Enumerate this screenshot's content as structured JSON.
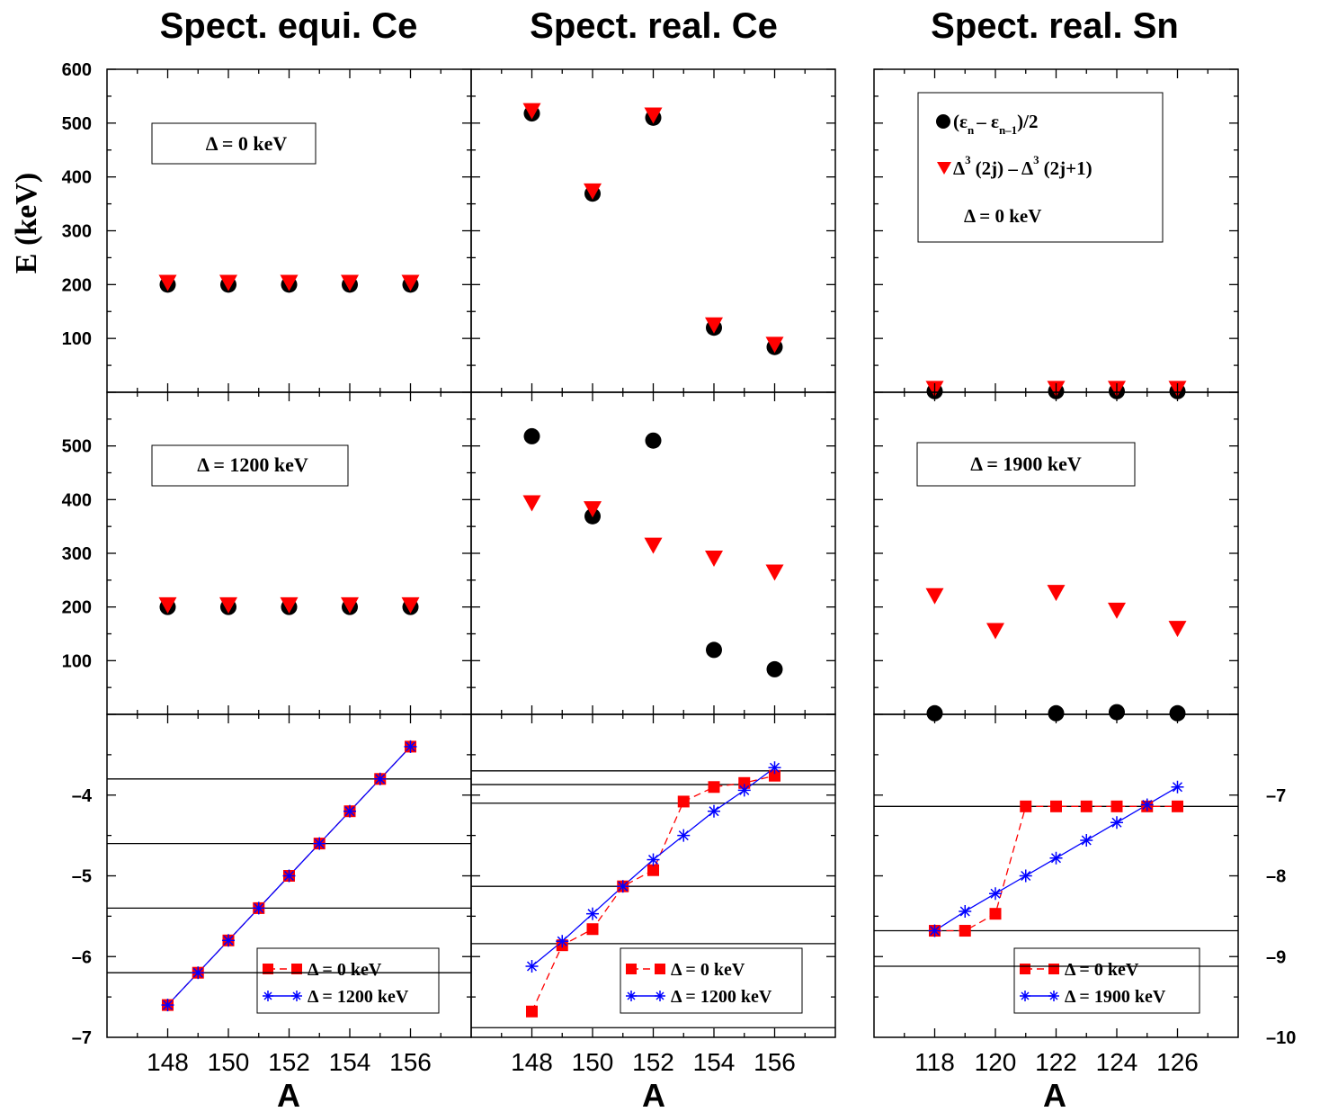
{
  "figure": {
    "ylabel": "E  (keV)",
    "columns": [
      {
        "title": "Spect. equi. Ce",
        "xlabel": "A",
        "xticks": [
          "148",
          "150",
          "152",
          "154",
          "156"
        ]
      },
      {
        "title": "Spect. real. Ce",
        "xlabel": "A",
        "xticks": [
          "148",
          "150",
          "152",
          "154",
          "156"
        ]
      },
      {
        "title": "Spect. real. Sn",
        "xlabel": "A",
        "xticks": [
          "118",
          "120",
          "122",
          "124",
          "126"
        ]
      }
    ],
    "top_yticks": [
      "600",
      "500",
      "400",
      "300",
      "200",
      "100"
    ],
    "mid_yticks": [
      "500",
      "400",
      "300",
      "200",
      "100"
    ],
    "bottom_left_yticks": [
      "-4",
      "-5",
      "-6",
      "-7"
    ],
    "bottom_right_yticks": [
      "-7",
      "-8",
      "-9",
      "-10"
    ],
    "labels": {
      "delta0": "Δ = 0 keV",
      "delta1200": "Δ = 1200 keV",
      "delta1900": "Δ = 1900 keV",
      "leg_diff": "(ε",
      "leg_diff_sub_n": "n",
      "leg_diff_mid": "– ε",
      "leg_diff_sub_n1": "n–1",
      "leg_diff_end": ")/2",
      "leg_delta3_a": "Δ",
      "leg_delta3_sup": "3",
      "leg_delta3_b": "(2j) – Δ",
      "leg_delta3_sup2": "3",
      "leg_delta3_c": "(2j+1)"
    },
    "colors": {
      "red": "#ff0000",
      "blue": "#0000ff",
      "black": "#000000"
    }
  },
  "chart_data": [
    {
      "type": "scatter",
      "panel": "top-left",
      "xlim": [
        146,
        158
      ],
      "ylim": [
        0,
        600
      ],
      "series": [
        {
          "name": "(εn – εn–1)/2",
          "marker": "circle",
          "x": [
            148,
            150,
            152,
            154,
            156
          ],
          "y": [
            200,
            200,
            200,
            200,
            200
          ]
        },
        {
          "name": "Δ3(2j) – Δ3(2j+1)",
          "marker": "triangle",
          "x": [
            148,
            150,
            152,
            154,
            156
          ],
          "y": [
            203,
            203,
            203,
            203,
            203
          ]
        }
      ],
      "annotation": "Δ = 0 keV"
    },
    {
      "type": "scatter",
      "panel": "top-middle",
      "xlim": [
        146,
        158
      ],
      "ylim": [
        0,
        600
      ],
      "series": [
        {
          "name": "(εn – εn–1)/2",
          "marker": "circle",
          "x": [
            148,
            150,
            152,
            154,
            156
          ],
          "y": [
            518,
            369,
            510,
            120,
            84
          ]
        },
        {
          "name": "Δ3(2j) – Δ3(2j+1)",
          "marker": "triangle",
          "x": [
            148,
            150,
            152,
            154,
            156
          ],
          "y": [
            522,
            373,
            514,
            124,
            88
          ]
        }
      ]
    },
    {
      "type": "scatter",
      "panel": "top-right",
      "xlim": [
        116,
        128
      ],
      "ylim": [
        0,
        600
      ],
      "series": [
        {
          "name": "(εn – εn–1)/2",
          "marker": "circle",
          "x": [
            118,
            122,
            124,
            126
          ],
          "y": [
            2,
            2,
            2,
            2
          ]
        },
        {
          "name": "Δ3(2j) – Δ3(2j+1)",
          "marker": "triangle",
          "x": [
            118,
            122,
            124,
            126
          ],
          "y": [
            6,
            6,
            6,
            6
          ]
        }
      ],
      "annotation": "Δ = 0 keV"
    },
    {
      "type": "scatter",
      "panel": "middle-left",
      "xlim": [
        146,
        158
      ],
      "ylim": [
        0,
        600
      ],
      "series": [
        {
          "name": "(εn – εn–1)/2",
          "marker": "circle",
          "x": [
            148,
            150,
            152,
            154,
            156
          ],
          "y": [
            200,
            200,
            200,
            200,
            200
          ]
        },
        {
          "name": "Δ3(2j) – Δ3(2j+1)",
          "marker": "triangle",
          "x": [
            148,
            150,
            152,
            154,
            156
          ],
          "y": [
            203,
            203,
            203,
            203,
            203
          ]
        }
      ],
      "annotation": "Δ = 1200 keV"
    },
    {
      "type": "scatter",
      "panel": "middle-middle",
      "xlim": [
        146,
        158
      ],
      "ylim": [
        0,
        600
      ],
      "series": [
        {
          "name": "(εn – εn–1)/2",
          "marker": "circle",
          "x": [
            148,
            150,
            152,
            154,
            156
          ],
          "y": [
            518,
            369,
            510,
            120,
            84
          ]
        },
        {
          "name": "Δ3(2j) – Δ3(2j+1)",
          "marker": "triangle",
          "x": [
            148,
            150,
            152,
            154,
            156
          ],
          "y": [
            393,
            382,
            314,
            290,
            264
          ]
        }
      ]
    },
    {
      "type": "scatter",
      "panel": "middle-right",
      "xlim": [
        116,
        128
      ],
      "ylim": [
        0,
        600
      ],
      "series": [
        {
          "name": "(εn – εn–1)/2",
          "marker": "circle",
          "x": [
            118,
            122,
            124,
            126
          ],
          "y": [
            2,
            2,
            4,
            2
          ]
        },
        {
          "name": "Δ3(2j) – Δ3(2j+1)",
          "marker": "triangle",
          "x": [
            118,
            120,
            122,
            124,
            126
          ],
          "y": [
            220,
            155,
            226,
            193,
            159
          ]
        }
      ],
      "annotation": "Δ = 1900 keV"
    },
    {
      "type": "line",
      "panel": "bottom-left",
      "xlim": [
        146,
        158
      ],
      "ylim": [
        -7,
        -3
      ],
      "hlines": [
        -3.8,
        -4.6,
        -5.4,
        -6.2
      ],
      "series": [
        {
          "name": "Δ = 0 keV",
          "marker": "square",
          "x": [
            148,
            149,
            150,
            151,
            152,
            153,
            154,
            155,
            156
          ],
          "y": [
            -6.6,
            -6.2,
            -5.8,
            -5.4,
            -5.0,
            -4.6,
            -4.2,
            -3.8,
            -3.4
          ]
        },
        {
          "name": "Δ = 1200 keV",
          "marker": "asterisk",
          "x": [
            148,
            149,
            150,
            151,
            152,
            153,
            154,
            155,
            156
          ],
          "y": [
            -6.6,
            -6.2,
            -5.8,
            -5.4,
            -5.0,
            -4.6,
            -4.2,
            -3.8,
            -3.4
          ]
        }
      ]
    },
    {
      "type": "line",
      "panel": "bottom-middle",
      "xlim": [
        146,
        158
      ],
      "ylim": [
        -7,
        -3
      ],
      "hlines": [
        -3.7,
        -3.87,
        -4.1,
        -5.13,
        -5.84,
        -6.88
      ],
      "series": [
        {
          "name": "Δ = 0 keV",
          "marker": "square",
          "x": [
            148,
            149,
            150,
            151,
            152,
            153,
            154,
            155,
            156
          ],
          "y": [
            -6.68,
            -5.86,
            -5.66,
            -5.13,
            -4.93,
            -4.08,
            -3.9,
            -3.85,
            -3.76
          ]
        },
        {
          "name": "Δ = 1200 keV",
          "marker": "asterisk",
          "x": [
            148,
            149,
            150,
            151,
            152,
            153,
            154,
            155,
            156
          ],
          "y": [
            -6.12,
            -5.81,
            -5.47,
            -5.13,
            -4.8,
            -4.5,
            -4.2,
            -3.94,
            -3.66
          ]
        }
      ]
    },
    {
      "type": "line",
      "panel": "bottom-right",
      "xlim": [
        116,
        128
      ],
      "ylim": [
        -10,
        -6
      ],
      "hlines": [
        -7.14,
        -8.68,
        -9.12
      ],
      "series": [
        {
          "name": "Δ = 0 keV",
          "marker": "square",
          "x": [
            118,
            119,
            120,
            121,
            122,
            123,
            124,
            125,
            126
          ],
          "y": [
            -8.68,
            -8.68,
            -8.47,
            -7.14,
            -7.14,
            -7.14,
            -7.14,
            -7.14,
            -7.14
          ]
        },
        {
          "name": "Δ = 1900 keV",
          "marker": "asterisk",
          "x": [
            118,
            119,
            120,
            121,
            122,
            123,
            124,
            125,
            126
          ],
          "y": [
            -8.68,
            -8.44,
            -8.22,
            -8.0,
            -7.78,
            -7.56,
            -7.34,
            -7.12,
            -6.9
          ]
        }
      ]
    }
  ]
}
